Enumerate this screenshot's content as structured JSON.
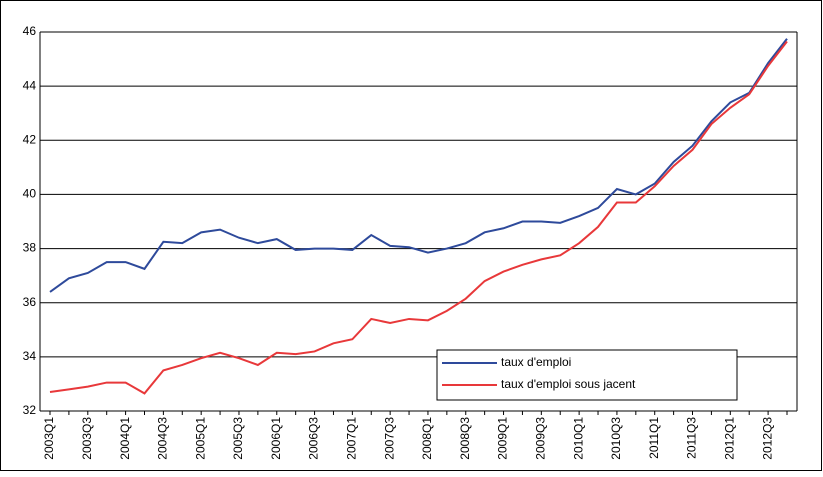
{
  "chart_data": {
    "type": "line",
    "categories": [
      "2003Q1",
      null,
      "2003Q3",
      null,
      "2004Q1",
      null,
      "2004Q3",
      null,
      "2005Q1",
      null,
      "2005Q3",
      null,
      "2006Q1",
      null,
      "2006Q3",
      null,
      "2007Q1",
      null,
      "2007Q3",
      null,
      "2008Q1",
      null,
      "2008Q3",
      null,
      "2009Q1",
      null,
      "2009Q3",
      null,
      "2010Q1",
      null,
      "2010Q3",
      null,
      "2011Q1",
      null,
      "2011Q3",
      null,
      "2012Q1",
      null,
      "2012Q3",
      null
    ],
    "series": [
      {
        "name": "taux d'emploi",
        "color": "#2e4a9b",
        "values": [
          36.4,
          36.9,
          37.1,
          37.5,
          37.5,
          37.25,
          38.25,
          38.2,
          38.6,
          38.7,
          38.4,
          38.2,
          38.35,
          37.95,
          38.0,
          38.0,
          37.95,
          38.5,
          38.1,
          38.05,
          37.85,
          38.0,
          38.2,
          38.6,
          38.75,
          39.0,
          39.0,
          38.95,
          39.2,
          39.5,
          40.2,
          40.0,
          40.4,
          41.2,
          41.8,
          42.7,
          43.4,
          43.75,
          44.85,
          45.75
        ]
      },
      {
        "name": "taux d'emploi sous jacent",
        "color": "#e8383a",
        "values": [
          32.7,
          32.8,
          32.9,
          33.05,
          33.05,
          32.65,
          33.5,
          33.7,
          33.95,
          34.15,
          33.95,
          33.7,
          34.15,
          34.1,
          34.2,
          34.5,
          34.65,
          35.4,
          35.25,
          35.4,
          35.35,
          35.7,
          36.15,
          36.8,
          37.15,
          37.4,
          37.6,
          37.75,
          38.2,
          38.8,
          39.7,
          39.7,
          40.3,
          41.05,
          41.65,
          42.6,
          43.2,
          43.7,
          44.75,
          45.65
        ]
      }
    ],
    "ylim": [
      32,
      46
    ],
    "yticks": [
      32,
      34,
      36,
      38,
      40,
      42,
      44,
      46
    ],
    "grid": true,
    "legend": "lower right"
  }
}
